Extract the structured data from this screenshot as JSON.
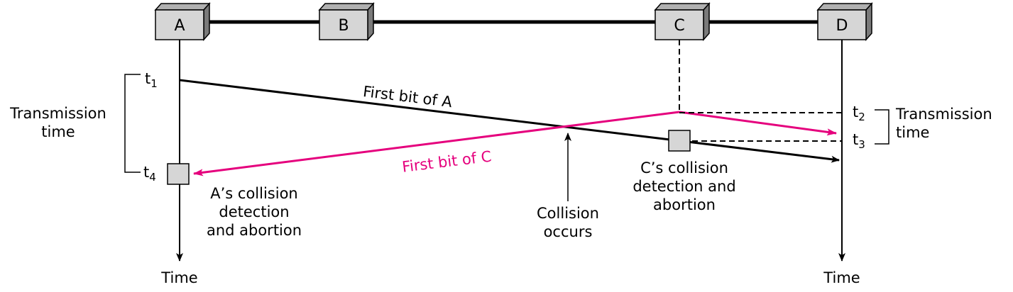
{
  "stations": [
    {
      "id": "A",
      "label": "A"
    },
    {
      "id": "B",
      "label": "B"
    },
    {
      "id": "C",
      "label": "C"
    },
    {
      "id": "D",
      "label": "D"
    }
  ],
  "labels": {
    "first_bit_a": "First bit of A",
    "first_bit_c": "First bit of C",
    "transmission_time_left_line1": "Transmission",
    "transmission_time_left_line2": "time",
    "transmission_time_right_line1": "Transmission",
    "transmission_time_right_line2": "time",
    "a_collision_line1": "A’s collision",
    "a_collision_line2": "detection",
    "a_collision_line3": "and abortion",
    "c_collision_line1": "C’s collision",
    "c_collision_line2": "detection and",
    "c_collision_line3": "abortion",
    "collision_line1": "Collision",
    "collision_line2": "occurs",
    "time_left": "Time",
    "time_right": "Time"
  },
  "time_marks": {
    "t1": {
      "base": "t",
      "sub": "1"
    },
    "t2": {
      "base": "t",
      "sub": "2"
    },
    "t3": {
      "base": "t",
      "sub": "3"
    },
    "t4": {
      "base": "t",
      "sub": "4"
    }
  },
  "colors": {
    "line": "#000000",
    "signal_c": "#e5007d",
    "box_face": "#d6d6d6",
    "box_side": "#7a7a7a",
    "box_top": "#b0b0b0"
  }
}
